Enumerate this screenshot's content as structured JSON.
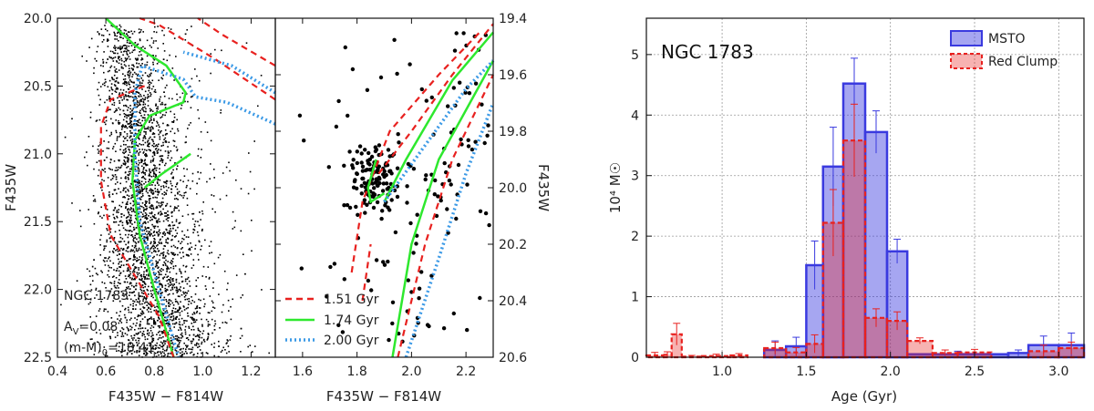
{
  "chart_data": [
    {
      "type": "scatter",
      "panel": "cmd-left",
      "xlabel": "F435W − F814W",
      "ylabel": "F435W",
      "xlim": [
        0.4,
        1.3
      ],
      "ylim": [
        22.5,
        20.0
      ],
      "xticks": [
        "0.4",
        "0.6",
        "0.8",
        "1.0",
        "1.2"
      ],
      "yticks": [
        "20.0",
        "20.5",
        "21.0",
        "21.5",
        "22.0",
        "22.5"
      ],
      "annotations": {
        "name": "NGC 1783",
        "av": "A",
        "av_sub": "V",
        "av_val": "=0.08",
        "dm": "(m-M)",
        "dm_sub": "0",
        "dm_val": "=18.41"
      }
    },
    {
      "type": "scatter",
      "panel": "cmd-right",
      "xlabel": "F435W − F814W",
      "ylabel": "F435W",
      "xlim": [
        1.5,
        2.3
      ],
      "ylim": [
        20.6,
        19.4
      ],
      "xticks": [
        "1.6",
        "1.8",
        "2.0",
        "2.2"
      ],
      "yticks": [
        "19.4",
        "19.6",
        "19.8",
        "20.0",
        "20.2",
        "20.4",
        "20.6"
      ],
      "legend_position": "lower-left",
      "legend": [
        {
          "label": "1.51 Gyr",
          "color": "#e8211f",
          "style": "dashed"
        },
        {
          "label": "1.74 Gyr",
          "color": "#2ee82e",
          "style": "solid"
        },
        {
          "label": "2.00 Gyr",
          "color": "#3c9ae6",
          "style": "dotted"
        }
      ]
    },
    {
      "type": "bar",
      "panel": "histogram",
      "title": "NGC 1783",
      "xlabel": "Age (Gyr)",
      "ylabel": "10⁴ M☉",
      "xlim": [
        0.55,
        3.15
      ],
      "ylim": [
        0,
        5.6
      ],
      "xticks": [
        "1.0",
        "1.5",
        "2.0",
        "2.5",
        "3.0"
      ],
      "yticks": [
        "0",
        "1",
        "2",
        "3",
        "4",
        "5"
      ],
      "legend_position": "top-right",
      "series": [
        {
          "name": "MSTO",
          "color": "#3a3adf",
          "bins": [
            {
              "x0": 1.25,
              "x1": 1.38,
              "v": 0.12,
              "e": 0.15
            },
            {
              "x0": 1.38,
              "x1": 1.5,
              "v": 0.18,
              "e": 0.15
            },
            {
              "x0": 1.5,
              "x1": 1.6,
              "v": 1.52,
              "e": 0.4
            },
            {
              "x0": 1.6,
              "x1": 1.72,
              "v": 3.15,
              "e": 0.65
            },
            {
              "x0": 1.72,
              "x1": 1.85,
              "v": 4.52,
              "e": 0.42
            },
            {
              "x0": 1.85,
              "x1": 1.98,
              "v": 3.72,
              "e": 0.35
            },
            {
              "x0": 1.98,
              "x1": 2.1,
              "v": 1.75,
              "e": 0.2
            },
            {
              "x0": 2.1,
              "x1": 2.7,
              "v": 0.05,
              "e": 0.05
            },
            {
              "x0": 2.7,
              "x1": 2.82,
              "v": 0.07,
              "e": 0.05
            },
            {
              "x0": 2.82,
              "x1": 3.0,
              "v": 0.2,
              "e": 0.15
            },
            {
              "x0": 3.0,
              "x1": 3.15,
              "v": 0.2,
              "e": 0.2
            }
          ]
        },
        {
          "name": "Red Clump",
          "color": "#e8211f",
          "bins": [
            {
              "x0": 0.55,
              "x1": 0.65,
              "v": 0.03,
              "e": 0.05
            },
            {
              "x0": 0.65,
              "x1": 0.7,
              "v": 0.04,
              "e": 0.05
            },
            {
              "x0": 0.7,
              "x1": 0.76,
              "v": 0.38,
              "e": 0.18
            },
            {
              "x0": 0.76,
              "x1": 0.88,
              "v": 0.01,
              "e": 0.02
            },
            {
              "x0": 0.88,
              "x1": 1.05,
              "v": 0.02,
              "e": 0.03
            },
            {
              "x0": 1.05,
              "x1": 1.15,
              "v": 0.03,
              "e": 0.03
            },
            {
              "x0": 1.25,
              "x1": 1.38,
              "v": 0.15,
              "e": 0.1
            },
            {
              "x0": 1.38,
              "x1": 1.5,
              "v": 0.08,
              "e": 0.08
            },
            {
              "x0": 1.5,
              "x1": 1.6,
              "v": 0.22,
              "e": 0.15
            },
            {
              "x0": 1.6,
              "x1": 1.72,
              "v": 2.22,
              "e": 0.55
            },
            {
              "x0": 1.72,
              "x1": 1.85,
              "v": 3.58,
              "e": 0.6
            },
            {
              "x0": 1.85,
              "x1": 1.98,
              "v": 0.65,
              "e": 0.15
            },
            {
              "x0": 1.98,
              "x1": 2.1,
              "v": 0.6,
              "e": 0.15
            },
            {
              "x0": 2.1,
              "x1": 2.25,
              "v": 0.27,
              "e": 0.05
            },
            {
              "x0": 2.25,
              "x1": 2.4,
              "v": 0.07,
              "e": 0.05
            },
            {
              "x0": 2.4,
              "x1": 2.6,
              "v": 0.08,
              "e": 0.05
            },
            {
              "x0": 2.82,
              "x1": 3.0,
              "v": 0.1,
              "e": 0.1
            },
            {
              "x0": 3.0,
              "x1": 3.15,
              "v": 0.15,
              "e": 0.1
            }
          ]
        }
      ]
    }
  ]
}
